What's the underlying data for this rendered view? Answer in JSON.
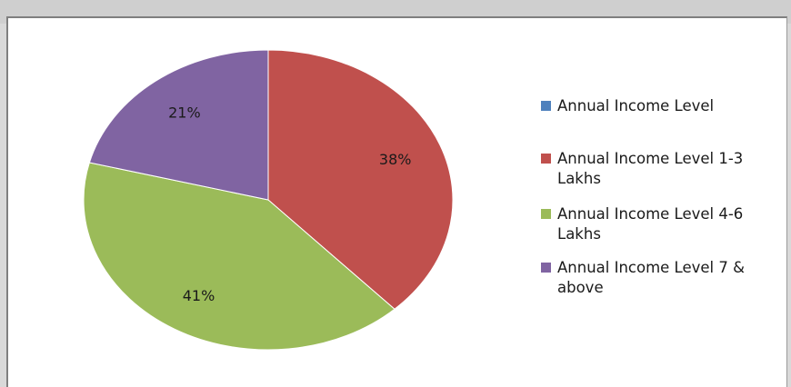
{
  "chart_data": {
    "type": "pie",
    "title": "",
    "categories": [
      "Annual Income Level",
      "Annual Income Level 1-3 Lakhs",
      "Annual Income Level 4-6 Lakhs",
      "Annual Income Level 7 & above"
    ],
    "values": [
      0,
      38,
      41,
      21
    ],
    "data_labels": [
      "",
      "38%",
      "41%",
      "21%"
    ],
    "colors": [
      "#4f81bd",
      "#c0504d",
      "#9bbb59",
      "#8064a2"
    ],
    "legend_position": "right",
    "legend_lines": [
      [
        "Annual Income Level"
      ],
      [
        "Annual Income Level 1-3",
        "Lakhs"
      ],
      [
        "Annual Income Level 4-6",
        "Lakhs"
      ],
      [
        "Annual Income Level 7 &",
        "above"
      ]
    ]
  }
}
